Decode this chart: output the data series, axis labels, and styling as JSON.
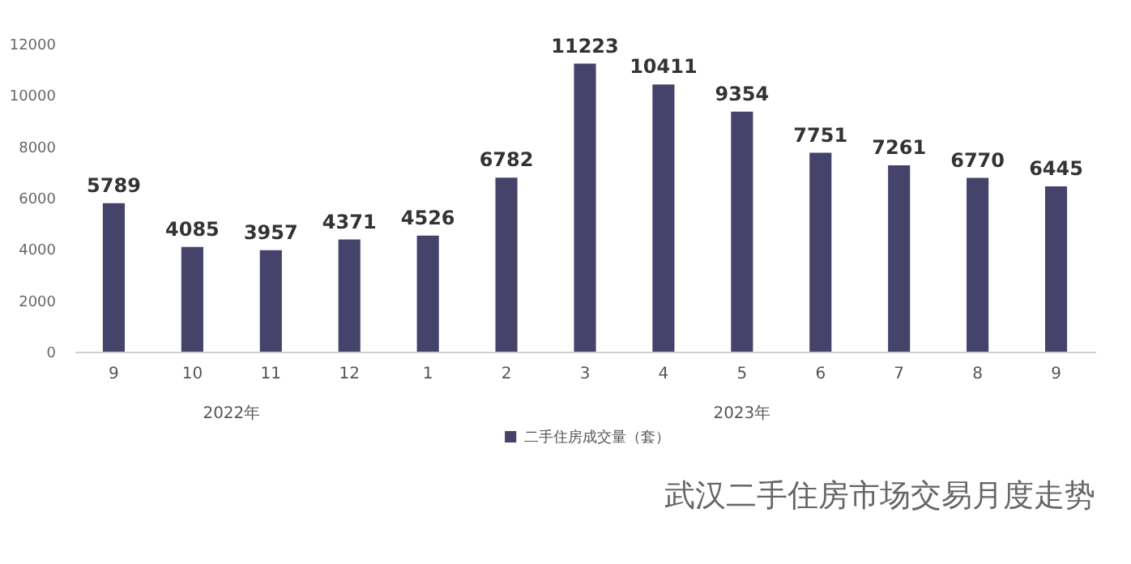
{
  "chart_data": {
    "type": "bar",
    "title": "武汉二手住房市场交易月度走势",
    "categories": [
      "9",
      "10",
      "11",
      "12",
      "1",
      "2",
      "3",
      "4",
      "5",
      "6",
      "7",
      "8",
      "9"
    ],
    "series": [
      {
        "name": "二手住房成交量（套）",
        "color": "#46436b",
        "values": [
          5789,
          4085,
          3957,
          4371,
          4526,
          6782,
          11223,
          10411,
          9354,
          7751,
          7261,
          6770,
          6445
        ]
      }
    ],
    "annotations": [
      "2022年",
      "2023年"
    ],
    "ylim": [
      0,
      12000
    ],
    "yticks": [
      0,
      2000,
      4000,
      6000,
      8000,
      10000,
      12000
    ],
    "data_labels": true,
    "grid": false,
    "legend": "bottom"
  }
}
